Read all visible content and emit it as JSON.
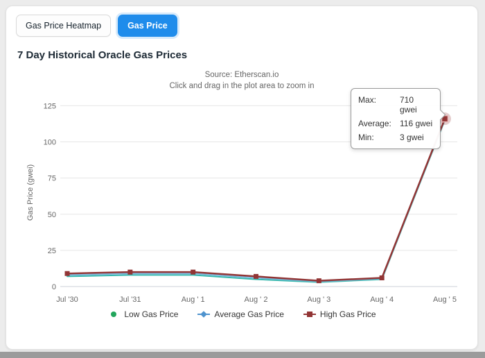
{
  "tabs": {
    "heatmap_label": "Gas Price Heatmap",
    "gas_price_label": "Gas Price"
  },
  "header": {
    "title": "7 Day Historical Oracle Gas Prices"
  },
  "chart_header": {
    "source": "Source: Etherscan.io",
    "hint": "Click and drag in the plot area to zoom in"
  },
  "tooltip": {
    "rows": [
      {
        "label": "Max:",
        "value": "710 gwei"
      },
      {
        "label": "Average:",
        "value": "116 gwei"
      },
      {
        "label": "Min:",
        "value": "3 gwei"
      }
    ]
  },
  "legend": [
    {
      "name": "Low Gas Price",
      "color": "#22a65c",
      "marker": "circle"
    },
    {
      "name": "Average Gas Price",
      "color": "#4f93ce",
      "marker": "diamond"
    },
    {
      "name": "High Gas Price",
      "color": "#923535",
      "marker": "square"
    }
  ],
  "colors": {
    "accent_blue": "#1f8ceb",
    "grid": "#e6e6e6",
    "axis_text": "#666666"
  },
  "chart_data": {
    "type": "line",
    "x": [
      "Jul '30",
      "Jul '31",
      "Aug ' 1",
      "Aug ' 2",
      "Aug ' 3",
      "Aug ' 4",
      "Aug ' 5"
    ],
    "series": [
      {
        "name": "Low Gas Price",
        "color": "#35b8ad",
        "width": 2,
        "marker": "none",
        "values": [
          7,
          8,
          8,
          5,
          3,
          5,
          115
        ]
      },
      {
        "name": "Average Gas Price",
        "color": "#7db8de",
        "width": 2,
        "marker": "none",
        "values": [
          8,
          9,
          9,
          6,
          3.5,
          5.5,
          115.5
        ]
      },
      {
        "name": "High Gas Price",
        "color": "#923535",
        "width": 2.5,
        "marker": "square",
        "values": [
          9,
          10,
          10,
          7,
          4,
          6,
          116
        ]
      }
    ],
    "ylabel": "Gas Price (gwei)",
    "xlabel": "",
    "ylim": [
      0,
      130
    ],
    "yticks": [
      0,
      25,
      50,
      75,
      100,
      125
    ],
    "grid": true,
    "legend_position": "bottom",
    "highlight": {
      "series_index": 2,
      "index": 6
    }
  }
}
